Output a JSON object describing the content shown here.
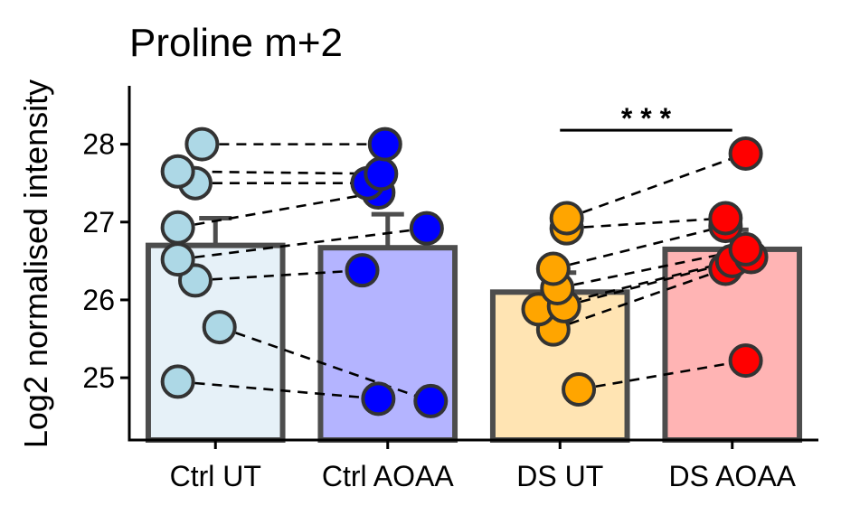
{
  "chart_data": {
    "type": "bar",
    "title": "Proline m+2",
    "xlabel": "",
    "ylabel": "Log2 normalised intensity",
    "categories": [
      "Ctrl UT",
      "Ctrl AOAA",
      "DS UT",
      "DS AOAA"
    ],
    "bar_values": [
      26.7,
      26.67,
      26.1,
      26.65
    ],
    "error_upper": [
      27.05,
      27.1,
      26.35,
      26.9
    ],
    "yticks": [
      25,
      26,
      27,
      28
    ],
    "ylim": [
      24.2,
      28.75
    ],
    "grid": false,
    "legend": "none",
    "colors": {
      "bar_fills": [
        "#e6f1f8",
        "#b4b4ff",
        "#ffe4b3",
        "#ffb4b4"
      ],
      "point_fills": [
        "#add8e6",
        "#0000ff",
        "#ffa500",
        "#ff0000"
      ],
      "outline": "#4d4d4d"
    },
    "points": [
      [
        {
          "x": 0.22,
          "y": 24.95
        },
        {
          "x": 0.53,
          "y": 25.65
        },
        {
          "x": 0.35,
          "y": 26.25
        },
        {
          "x": 0.22,
          "y": 26.52
        },
        {
          "x": 0.22,
          "y": 26.93
        },
        {
          "x": 0.35,
          "y": 27.5
        },
        {
          "x": 0.22,
          "y": 27.65
        },
        {
          "x": 0.4,
          "y": 28.0
        }
      ],
      [
        {
          "x": 0.43,
          "y": 24.73
        },
        {
          "x": 0.82,
          "y": 24.7
        },
        {
          "x": 0.31,
          "y": 26.38
        },
        {
          "x": 0.79,
          "y": 26.92
        },
        {
          "x": 0.43,
          "y": 27.38
        },
        {
          "x": 0.35,
          "y": 27.5
        },
        {
          "x": 0.45,
          "y": 27.62
        },
        {
          "x": 0.48,
          "y": 28.0
        }
      ],
      [
        {
          "x": 0.64,
          "y": 24.85
        },
        {
          "x": 0.45,
          "y": 25.62
        },
        {
          "x": 0.34,
          "y": 25.88
        },
        {
          "x": 0.53,
          "y": 25.92
        },
        {
          "x": 0.48,
          "y": 26.15
        },
        {
          "x": 0.45,
          "y": 26.4
        },
        {
          "x": 0.55,
          "y": 26.92
        },
        {
          "x": 0.55,
          "y": 27.05
        }
      ],
      [
        {
          "x": 0.6,
          "y": 25.22
        },
        {
          "x": 0.45,
          "y": 26.4
        },
        {
          "x": 0.5,
          "y": 26.5
        },
        {
          "x": 0.64,
          "y": 26.55
        },
        {
          "x": 0.6,
          "y": 26.65
        },
        {
          "x": 0.45,
          "y": 26.95
        },
        {
          "x": 0.45,
          "y": 27.05
        },
        {
          "x": 0.6,
          "y": 27.88
        }
      ]
    ],
    "pairs": [
      {
        "from": [
          0,
          7
        ],
        "to": [
          1,
          7
        ]
      },
      {
        "from": [
          0,
          6
        ],
        "to": [
          1,
          6
        ]
      },
      {
        "from": [
          0,
          5
        ],
        "to": [
          1,
          5
        ]
      },
      {
        "from": [
          0,
          4
        ],
        "to": [
          1,
          4
        ]
      },
      {
        "from": [
          0,
          3
        ],
        "to": [
          1,
          3
        ]
      },
      {
        "from": [
          0,
          2
        ],
        "to": [
          1,
          2
        ]
      },
      {
        "from": [
          0,
          1
        ],
        "to": [
          1,
          1
        ]
      },
      {
        "from": [
          0,
          0
        ],
        "to": [
          1,
          0
        ]
      },
      {
        "from": [
          2,
          7
        ],
        "to": [
          3,
          7
        ]
      },
      {
        "from": [
          2,
          6
        ],
        "to": [
          3,
          6
        ]
      },
      {
        "from": [
          2,
          5
        ],
        "to": [
          3,
          5
        ]
      },
      {
        "from": [
          2,
          4
        ],
        "to": [
          3,
          4
        ]
      },
      {
        "from": [
          2,
          3
        ],
        "to": [
          3,
          3
        ]
      },
      {
        "from": [
          2,
          2
        ],
        "to": [
          3,
          2
        ]
      },
      {
        "from": [
          2,
          1
        ],
        "to": [
          3,
          1
        ]
      },
      {
        "from": [
          2,
          0
        ],
        "to": [
          3,
          0
        ]
      }
    ],
    "significance": {
      "from": 2,
      "to": 3,
      "y": 28.18,
      "label": "* * *"
    }
  }
}
